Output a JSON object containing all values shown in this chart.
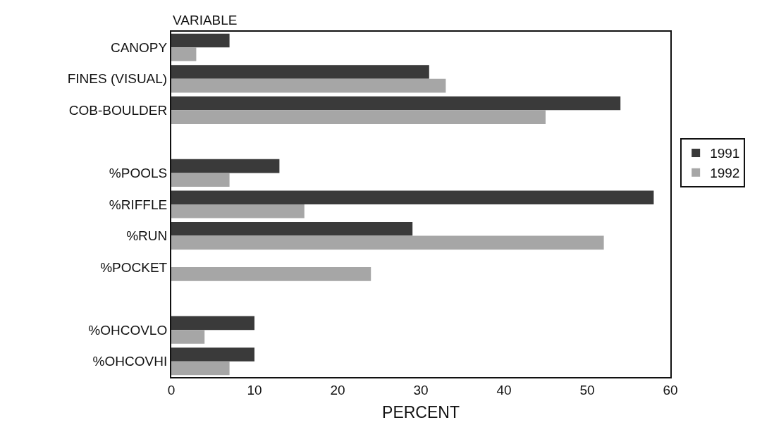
{
  "chart_data": {
    "type": "bar",
    "orientation": "horizontal",
    "ylabel": "VARIABLE",
    "xlabel": "PERCENT",
    "categories": [
      "CANOPY",
      "FINES (VISUAL)",
      "COB-BOULDER",
      null,
      "%POOLS",
      "%RIFFLE",
      "%RUN",
      "%POCKET",
      null,
      "%OHCOVLO",
      "%OHCOVHI"
    ],
    "series": [
      {
        "name": "1991",
        "color": "#3a3a3a",
        "values": [
          7,
          31,
          54,
          null,
          13,
          58,
          29,
          null,
          null,
          10,
          10
        ]
      },
      {
        "name": "1992",
        "color": "#a6a6a6",
        "values": [
          3,
          33,
          45,
          null,
          7,
          16,
          52,
          24,
          null,
          4,
          7
        ]
      }
    ],
    "xlim": [
      0,
      60
    ],
    "xticks": [
      0,
      10,
      20,
      30,
      40,
      50,
      60
    ],
    "grid": false,
    "legend": "right"
  }
}
